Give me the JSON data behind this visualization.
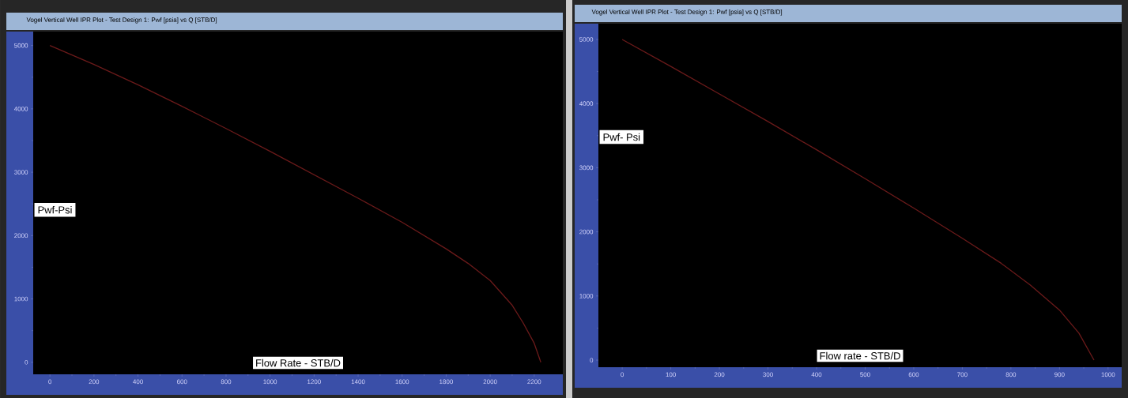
{
  "chart_data": [
    {
      "type": "line",
      "title": "Vogel Vertical Well IPR Plot - Test Design 1: Pwf [psia] vs Q [STB/D]",
      "xlabel": "Flow Rate - STB/D",
      "ylabel": "Pwf-Psi",
      "x": [
        0,
        200,
        400,
        600,
        800,
        1000,
        1200,
        1400,
        1600,
        1800,
        1900,
        2000,
        2100,
        2150,
        2200,
        2230
      ],
      "series": [
        {
          "color": "#6b1a1a",
          "values": [
            5000,
            4700,
            4380,
            4040,
            3690,
            3330,
            2960,
            2590,
            2210,
            1790,
            1560,
            1290,
            900,
            620,
            300,
            0
          ]
        }
      ],
      "xlim": [
        -76,
        2330
      ],
      "ylim": [
        -190,
        5220
      ],
      "xticks": [
        0,
        200,
        400,
        600,
        800,
        1000,
        1200,
        1400,
        1600,
        1800,
        2000,
        2200
      ],
      "yticks": [
        0,
        1000,
        2000,
        3000,
        4000,
        5000
      ]
    },
    {
      "type": "line",
      "title": "Vogel Vertical Well IPR Plot - Test Design 1: Pwf [psia] vs Q [STB/D]",
      "xlabel": "Flow rate - STB/D",
      "ylabel": "Pwf- Psi",
      "x": [
        0,
        100,
        200,
        300,
        400,
        500,
        600,
        700,
        780,
        840,
        900,
        940,
        971
      ],
      "series": [
        {
          "color": "#6b1a1a",
          "values": [
            5000,
            4580,
            4150,
            3720,
            3280,
            2830,
            2370,
            1900,
            1510,
            1170,
            780,
            420,
            0
          ]
        }
      ],
      "xlim": [
        -49,
        1028
      ],
      "ylim": [
        -110,
        5246
      ],
      "xticks": [
        0,
        100,
        200,
        300,
        400,
        500,
        600,
        700,
        800,
        900,
        1000
      ],
      "yticks": [
        0,
        1000,
        2000,
        3000,
        4000,
        5000
      ]
    }
  ]
}
